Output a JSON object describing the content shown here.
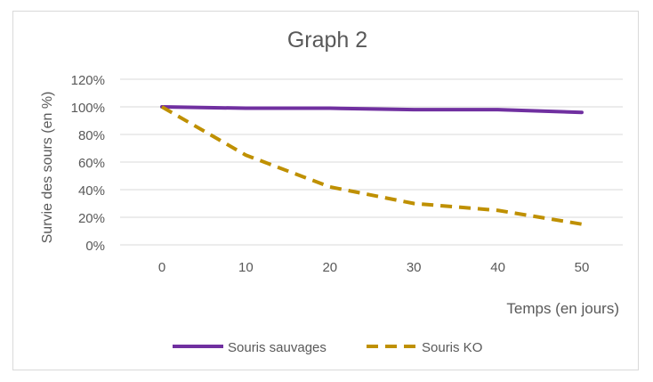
{
  "chart_data": {
    "type": "line",
    "title": "Graph 2",
    "xlabel": "Temps (en jours)",
    "ylabel": "Survie des sours (en %)",
    "x": [
      0,
      10,
      20,
      30,
      40,
      50
    ],
    "ylim": [
      0,
      120
    ],
    "yticks": [
      0,
      20,
      40,
      60,
      80,
      100,
      120
    ],
    "ytick_labels": [
      "0%",
      "20%",
      "40%",
      "60%",
      "80%",
      "100%",
      "120%"
    ],
    "xtick_labels": [
      "0",
      "10",
      "20",
      "30",
      "40",
      "50"
    ],
    "grid": true,
    "legend_position": "bottom",
    "series": [
      {
        "name": "Souris sauvages",
        "values": [
          100,
          99,
          99,
          98,
          98,
          96
        ],
        "style": "solid",
        "color": "#7030a0"
      },
      {
        "name": "Souris KO",
        "values": [
          100,
          65,
          42,
          30,
          25,
          15
        ],
        "style": "dashed",
        "color": "#bf9000"
      }
    ],
    "colors": {
      "gridline": "#d9d9d9",
      "text": "#595959"
    }
  }
}
